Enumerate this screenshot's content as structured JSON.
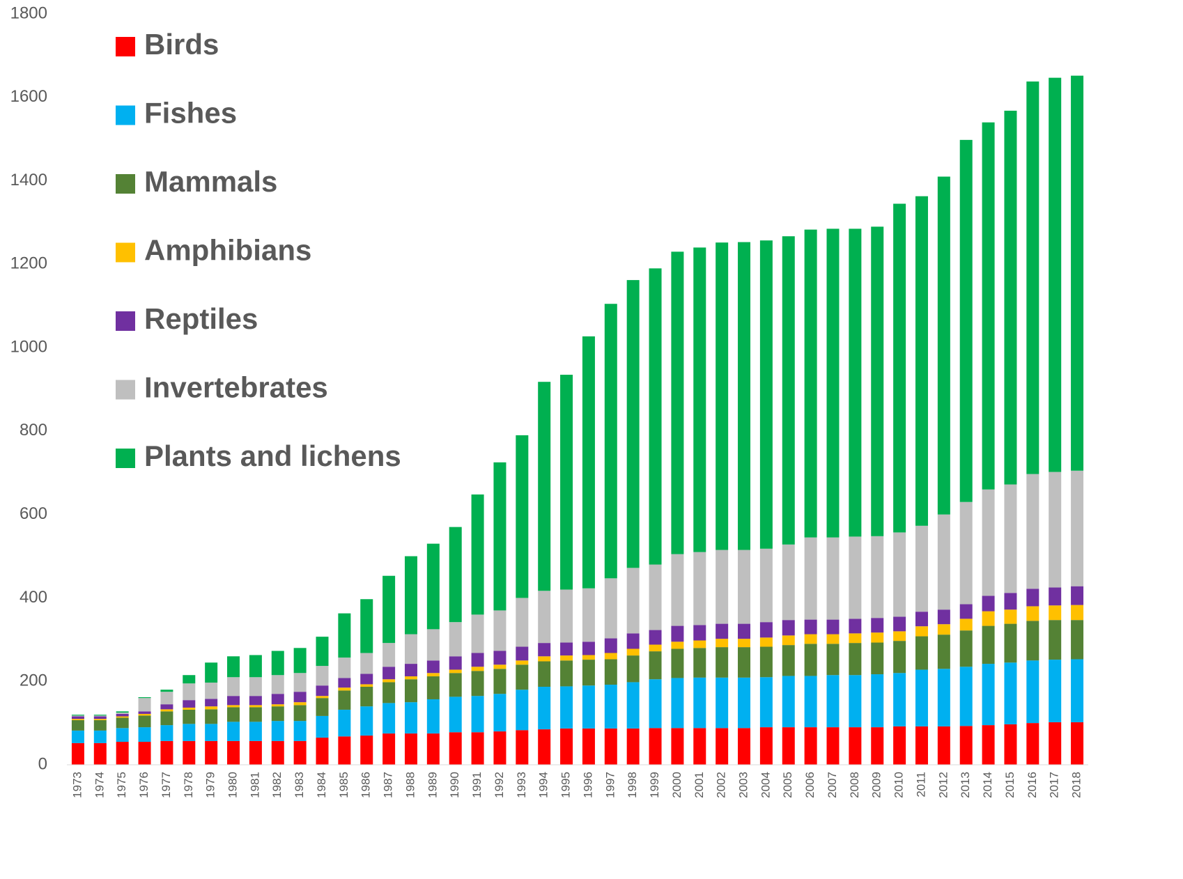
{
  "chart_data": {
    "type": "stacked-bar",
    "categories": [
      "1973",
      "1974",
      "1975",
      "1976",
      "1977",
      "1978",
      "1979",
      "1980",
      "1981",
      "1982",
      "1983",
      "1984",
      "1985",
      "1986",
      "1987",
      "1988",
      "1989",
      "1990",
      "1991",
      "1992",
      "1993",
      "1994",
      "1995",
      "1996",
      "1997",
      "1998",
      "1999",
      "2000",
      "2001",
      "2002",
      "2003",
      "2004",
      "2005",
      "2006",
      "2007",
      "2008",
      "2009",
      "2010",
      "2011",
      "2012",
      "2013",
      "2014",
      "2015",
      "2016",
      "2017",
      "2018"
    ],
    "series": [
      {
        "name": "Birds",
        "color": "#ff0000",
        "values": [
          52,
          52,
          55,
          55,
          57,
          57,
          57,
          57,
          57,
          57,
          57,
          65,
          68,
          70,
          75,
          75,
          75,
          78,
          78,
          80,
          83,
          85,
          87,
          87,
          87,
          87,
          88,
          88,
          88,
          88,
          88,
          90,
          90,
          90,
          90,
          90,
          90,
          92,
          92,
          92,
          93,
          95,
          97,
          100,
          102,
          102
        ]
      },
      {
        "name": "Fishes",
        "color": "#00b0f0",
        "values": [
          30,
          30,
          33,
          35,
          38,
          41,
          41,
          46,
          46,
          48,
          48,
          52,
          64,
          70,
          73,
          75,
          82,
          85,
          87,
          90,
          97,
          102,
          101,
          103,
          105,
          111,
          117,
          120,
          121,
          121,
          121,
          120,
          123,
          123,
          125,
          125,
          127,
          128,
          136,
          138,
          142,
          147,
          148,
          150,
          150,
          151
        ]
      },
      {
        "name": "Mammals",
        "color": "#548235",
        "values": [
          25,
          25,
          25,
          28,
          33,
          34,
          35,
          35,
          35,
          35,
          38,
          43,
          46,
          47,
          50,
          55,
          55,
          57,
          60,
          60,
          60,
          61,
          62,
          62,
          61,
          64,
          67,
          70,
          71,
          73,
          73,
          73,
          74,
          77,
          75,
          77,
          76,
          77,
          80,
          82,
          87,
          91,
          93,
          95,
          95,
          94
        ]
      },
      {
        "name": "Amphibians",
        "color": "#ffc000",
        "values": [
          3,
          3,
          3,
          4,
          5,
          5,
          7,
          5,
          5,
          5,
          7,
          5,
          7,
          6,
          7,
          7,
          8,
          8,
          10,
          10,
          10,
          12,
          12,
          11,
          15,
          16,
          16,
          17,
          18,
          20,
          20,
          22,
          23,
          23,
          23,
          23,
          24,
          23,
          24,
          25,
          28,
          35,
          34,
          35,
          35,
          36
        ]
      },
      {
        "name": "Reptiles",
        "color": "#7030a0",
        "values": [
          6,
          6,
          6,
          6,
          12,
          18,
          18,
          22,
          22,
          25,
          25,
          25,
          23,
          25,
          30,
          30,
          30,
          32,
          33,
          33,
          33,
          32,
          31,
          32,
          35,
          37,
          35,
          38,
          37,
          36,
          36,
          37,
          37,
          35,
          35,
          35,
          35,
          35,
          35,
          35,
          35,
          37,
          40,
          42,
          43,
          45
        ]
      },
      {
        "name": "Invertebrates",
        "color": "#bfbfbf",
        "values": [
          2,
          2,
          3,
          32,
          30,
          40,
          39,
          45,
          45,
          45,
          45,
          47,
          49,
          50,
          57,
          71,
          75,
          82,
          92,
          97,
          117,
          125,
          127,
          128,
          144,
          157,
          157,
          172,
          175,
          177,
          177,
          176,
          181,
          197,
          197,
          197,
          196,
          202,
          206,
          228,
          245,
          255,
          260,
          275,
          277,
          277
        ]
      },
      {
        "name": "Plants and lichens",
        "color": "#00b050",
        "values": [
          2,
          2,
          3,
          2,
          5,
          20,
          48,
          50,
          53,
          58,
          60,
          70,
          106,
          129,
          161,
          187,
          205,
          228,
          288,
          355,
          390,
          501,
          515,
          604,
          658,
          690,
          710,
          725,
          730,
          737,
          738,
          739,
          739,
          738,
          740,
          738,
          742,
          788,
          790,
          810,
          868,
          880,
          896,
          941,
          945,
          947
        ]
      }
    ],
    "ylim": [
      0,
      1800
    ],
    "yticks": [
      0,
      200,
      400,
      600,
      800,
      1000,
      1200,
      1400,
      1600,
      1800
    ],
    "grid": false,
    "legend": "upper left"
  }
}
